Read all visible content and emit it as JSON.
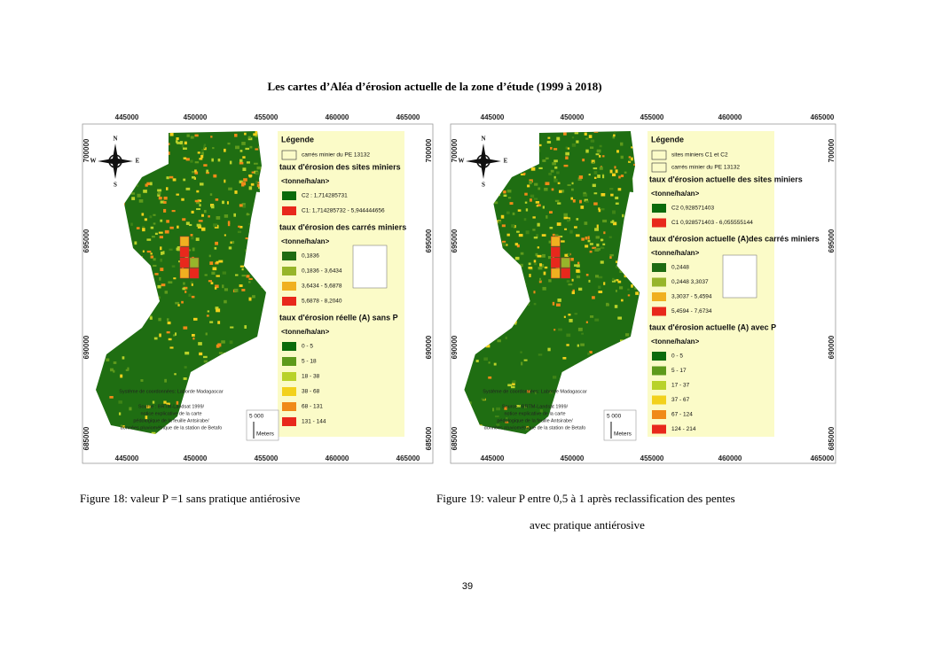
{
  "title": "Les cartes d’Aléa d’érosion  actuelle de la zone d’étude  (1999 à 2018)",
  "maps": [
    {
      "x_labels": [
        445000,
        450000,
        455000,
        460000,
        465000
      ],
      "y_labels": [
        700000,
        695000,
        690000,
        685000
      ],
      "compass": [
        "N",
        "S",
        "E",
        "W"
      ],
      "legend": {
        "title": "Légende",
        "outlines": [
          "carrés minier du PE 13132"
        ],
        "sections": [
          {
            "title": "taux d'érosion des sites miniers",
            "unit": "<tonne/ha/an>",
            "items": [
              {
                "label": "C2 : 1,714285731",
                "color": "#0b6b0b"
              },
              {
                "label": "C1: 1,714285732 - 5,944444656",
                "color": "#e8281c"
              }
            ]
          },
          {
            "title": "taux d'érosion des carrés miniers",
            "unit": "<tonne/ha/an>",
            "items": [
              {
                "label": "0,1836",
                "color": "#1e6b12"
              },
              {
                "label": "0,1836 - 3,6434",
                "color": "#97b52a"
              },
              {
                "label": "3,6434 - 5,6878",
                "color": "#f0b020"
              },
              {
                "label": "5,6878 - 8,2040",
                "color": "#e8281c"
              }
            ]
          },
          {
            "title": "taux d'érosion réelle (A) sans P",
            "unit": "<tonne/ha/an>",
            "items": [
              {
                "label": "0 - 5",
                "color": "#0b6b0b"
              },
              {
                "label": "5 - 18",
                "color": "#5e9a1c"
              },
              {
                "label": "18 - 38",
                "color": "#b8d22a"
              },
              {
                "label": "38 - 68",
                "color": "#f2d11c"
              },
              {
                "label": "68 - 131",
                "color": "#f08a18"
              },
              {
                "label": "131 - 144",
                "color": "#e8281c"
              }
            ]
          }
        ]
      },
      "source_lines": [
        "Système de coordonnées: Laborde Madagascar",
        "Source : BRTM-Landsat 1999/",
        "notice explicative de la carte",
        "pédologique de la feuille Antsirabe/",
        "données pluviométrique de la station de Betafo"
      ],
      "scale": {
        "distance": "5 000",
        "unit": "Meters"
      }
    },
    {
      "x_labels": [
        445000,
        450000,
        455000,
        460000,
        465000
      ],
      "y_labels": [
        700000,
        695000,
        690000,
        685000
      ],
      "compass": [
        "N",
        "S",
        "E",
        "W"
      ],
      "legend": {
        "title": "Légende",
        "outlines": [
          "sites miniers C1 et C2",
          "carrés minier du PE 13132"
        ],
        "sections": [
          {
            "title": "taux d'érosion actuelle des sites miniers",
            "unit": "<tonne/ha/an>",
            "items": [
              {
                "label": "C2 0,928571403",
                "color": "#0b6b0b"
              },
              {
                "label": "C1 0,928571403 - 6,055555144",
                "color": "#e8281c"
              }
            ]
          },
          {
            "title": "taux d'érosion actuelle (A)des carrés miniers",
            "unit": "<tonne/ha/an>",
            "items": [
              {
                "label": "0,2448",
                "color": "#1e6b12"
              },
              {
                "label": "0,2448 3,3037",
                "color": "#97b52a"
              },
              {
                "label": "3,3037 - 5,4594",
                "color": "#f0b020"
              },
              {
                "label": "5,4594 - 7,6734",
                "color": "#e8281c"
              }
            ]
          },
          {
            "title": "taux d'érosion actuelle (A) avec P",
            "unit": "<tonne/ha/an>",
            "items": [
              {
                "label": "0 - 5",
                "color": "#0b6b0b"
              },
              {
                "label": "5 - 17",
                "color": "#5e9a1c"
              },
              {
                "label": "17 - 37",
                "color": "#b8d22a"
              },
              {
                "label": "37 - 67",
                "color": "#f2d11c"
              },
              {
                "label": "67 - 124",
                "color": "#f08a18"
              },
              {
                "label": "124 - 214",
                "color": "#e8281c"
              }
            ]
          }
        ]
      },
      "source_lines": [
        "Système de coordonnées: Laborde Madagascar",
        "Source : BRTM-Landsat 1999/",
        "notice explicative de la carte",
        "pédologique de la feuille Antsirabe/",
        "données pluviométrique de la station de Betafo"
      ],
      "scale": {
        "distance": "5 000",
        "unit": "Meters"
      }
    }
  ],
  "figures": [
    {
      "caption": "Figure 18: valeur  P =1  sans pratique antiérosive"
    },
    {
      "caption_lines": [
        "Figure 19: valeur  P entre 0,5 à 1 après  reclassification des pentes",
        "avec  pratique antiérosive"
      ]
    }
  ],
  "page_number": "39"
}
